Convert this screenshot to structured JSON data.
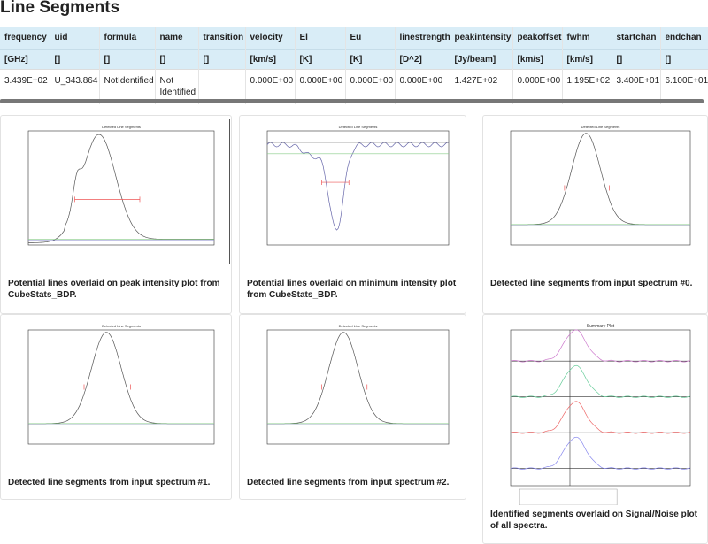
{
  "header": {
    "title": "Line Segments"
  },
  "table": {
    "columns": [
      "frequency",
      "uid",
      "formula",
      "name",
      "transition",
      "velocity",
      "El",
      "Eu",
      "linestrength",
      "peakintensity",
      "peakoffset",
      "fwhm",
      "startchan",
      "endchan"
    ],
    "units": [
      "[GHz]",
      "[]",
      "[]",
      "[]",
      "[]",
      "[km/s]",
      "[K]",
      "[K]",
      "[D^2]",
      "[Jy/beam]",
      "[km/s]",
      "[km/s]",
      "[]",
      "[]"
    ],
    "rows": [
      [
        "3.439E+02",
        "U_343.864",
        "NotIdentified",
        "Not Identified",
        null,
        "0.000E+00",
        "0.000E+00",
        "0.000E+00",
        "0.000E+00",
        "1.427E+02",
        "0.000E+00",
        "1.195E+02",
        "3.400E+01",
        "6.100E+01"
      ]
    ]
  },
  "figures": [
    {
      "plot_title": "Detected Line Segments",
      "caption": "Potential lines overlaid on peak intensity plot from CubeStats_BDP."
    },
    {
      "plot_title": "Detected Line Segments",
      "caption": "Potential lines overlaid on minimum intensity plot from CubeStats_BDP."
    },
    {
      "plot_title": "Detected Line Segments",
      "caption": "Detected line segments from input spectrum #0."
    },
    {
      "plot_title": "Detected Line Segments",
      "caption": "Detected line segments from input spectrum #1."
    },
    {
      "plot_title": "Detected Line Segments",
      "caption": "Detected line segments from input spectrum #2."
    },
    {
      "plot_title": "Summary Plot",
      "caption": "Identified segments overlaid on Signal/Noise plot of all spectra."
    }
  ]
}
